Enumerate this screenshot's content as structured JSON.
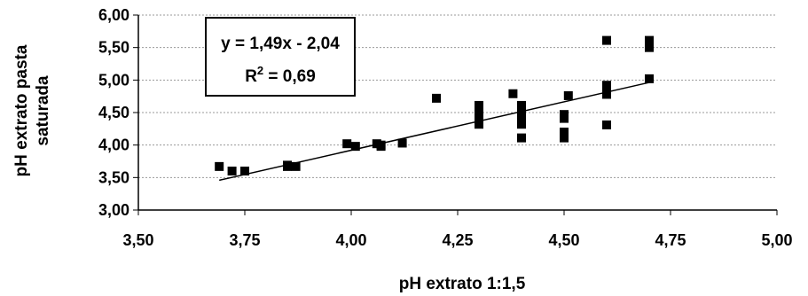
{
  "chart_data": {
    "type": "scatter",
    "title": "",
    "xlabel": "pH extrato 1:1,5",
    "ylabel": [
      "pH extrato pasta",
      "saturada"
    ],
    "xlim": [
      3.5,
      5.0
    ],
    "ylim": [
      3.0,
      6.0
    ],
    "x_ticks": [
      "3,50",
      "3,75",
      "4,00",
      "4,25",
      "4,50",
      "4,75",
      "5,00"
    ],
    "y_ticks": [
      "3,00",
      "3,50",
      "4,00",
      "4,50",
      "5,00",
      "5,50",
      "6,00"
    ],
    "grid": "horizontal dashed",
    "legend": "none",
    "marker_color": "#000000",
    "trendline": {
      "type": "linear",
      "slope": 1.49,
      "intercept": -2.04,
      "equation_label": "y = 1,49x - 2,04",
      "r2_prefix": "R",
      "r2_sup": "2",
      "r2_suffix": " = 0,69"
    },
    "points": [
      [
        3.69,
        3.67
      ],
      [
        3.72,
        3.6
      ],
      [
        3.75,
        3.6
      ],
      [
        3.85,
        3.69
      ],
      [
        3.85,
        3.67
      ],
      [
        3.87,
        3.67
      ],
      [
        3.99,
        4.02
      ],
      [
        4.01,
        3.98
      ],
      [
        4.06,
        4.02
      ],
      [
        4.07,
        4.0
      ],
      [
        4.07,
        3.98
      ],
      [
        4.12,
        4.03
      ],
      [
        4.2,
        4.72
      ],
      [
        4.3,
        4.61
      ],
      [
        4.3,
        4.55
      ],
      [
        4.3,
        4.48
      ],
      [
        4.3,
        4.41
      ],
      [
        4.3,
        4.32
      ],
      [
        4.38,
        4.79
      ],
      [
        4.4,
        4.61
      ],
      [
        4.4,
        4.52
      ],
      [
        4.4,
        4.45
      ],
      [
        4.4,
        4.38
      ],
      [
        4.4,
        4.32
      ],
      [
        4.4,
        4.11
      ],
      [
        4.5,
        4.47
      ],
      [
        4.5,
        4.41
      ],
      [
        4.5,
        4.2
      ],
      [
        4.5,
        4.11
      ],
      [
        4.51,
        4.76
      ],
      [
        4.6,
        5.61
      ],
      [
        4.6,
        4.92
      ],
      [
        4.6,
        4.86
      ],
      [
        4.6,
        4.78
      ],
      [
        4.6,
        4.31
      ],
      [
        4.7,
        5.61
      ],
      [
        4.7,
        5.55
      ],
      [
        4.7,
        5.5
      ],
      [
        4.7,
        5.02
      ]
    ]
  }
}
